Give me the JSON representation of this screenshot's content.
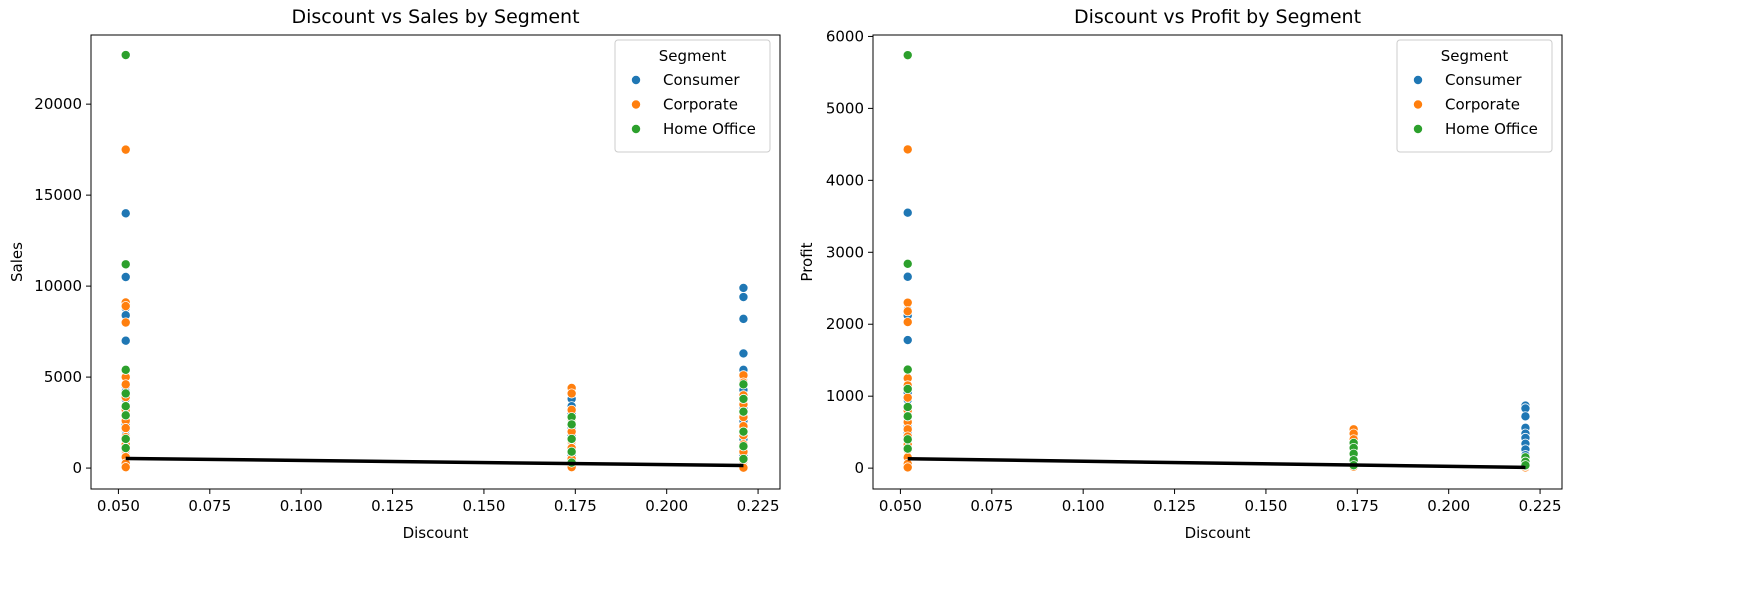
{
  "chart_data": [
    {
      "type": "scatter",
      "title": "Discount vs Sales by Segment",
      "xlabel": "Discount",
      "ylabel": "Sales",
      "xlim": [
        0.0425,
        0.231
      ],
      "ylim": [
        -1150,
        23800
      ],
      "xticks": [
        0.05,
        0.075,
        0.1,
        0.125,
        0.15,
        0.175,
        0.2,
        0.225
      ],
      "yticks": [
        0,
        5000,
        10000,
        15000,
        20000
      ],
      "grid": false,
      "legend": {
        "title": "Segment",
        "placement": "top-right"
      },
      "series": [
        {
          "name": "Consumer",
          "color": "#1f77b4",
          "points": [
            [
              0.052,
              14000
            ],
            [
              0.052,
              10500
            ],
            [
              0.052,
              8800
            ],
            [
              0.052,
              8400
            ],
            [
              0.052,
              7000
            ],
            [
              0.052,
              4500
            ],
            [
              0.052,
              4200
            ],
            [
              0.052,
              3800
            ],
            [
              0.052,
              3400
            ],
            [
              0.052,
              3000
            ],
            [
              0.052,
              2700
            ],
            [
              0.052,
              2400
            ],
            [
              0.052,
              2100
            ],
            [
              0.052,
              1800
            ],
            [
              0.052,
              1500
            ],
            [
              0.052,
              1200
            ],
            [
              0.052,
              900
            ],
            [
              0.052,
              600
            ],
            [
              0.052,
              300
            ],
            [
              0.052,
              100
            ],
            [
              0.174,
              3800
            ],
            [
              0.174,
              3400
            ],
            [
              0.174,
              3000
            ],
            [
              0.174,
              2600
            ],
            [
              0.174,
              2200
            ],
            [
              0.174,
              1800
            ],
            [
              0.174,
              1400
            ],
            [
              0.174,
              1000
            ],
            [
              0.174,
              700
            ],
            [
              0.174,
              400
            ],
            [
              0.174,
              150
            ],
            [
              0.221,
              9900
            ],
            [
              0.221,
              9400
            ],
            [
              0.221,
              8200
            ],
            [
              0.221,
              6300
            ],
            [
              0.221,
              5400
            ],
            [
              0.221,
              4800
            ],
            [
              0.221,
              4300
            ],
            [
              0.221,
              3300
            ],
            [
              0.221,
              2900
            ],
            [
              0.221,
              2600
            ],
            [
              0.221,
              2100
            ],
            [
              0.221,
              1600
            ],
            [
              0.221,
              1100
            ],
            [
              0.221,
              700
            ],
            [
              0.221,
              300
            ],
            [
              0.221,
              50
            ]
          ]
        },
        {
          "name": "Corporate",
          "color": "#ff7f0e",
          "points": [
            [
              0.052,
              17500
            ],
            [
              0.052,
              9100
            ],
            [
              0.052,
              8900
            ],
            [
              0.052,
              8000
            ],
            [
              0.052,
              5000
            ],
            [
              0.052,
              4600
            ],
            [
              0.052,
              3900
            ],
            [
              0.052,
              3200
            ],
            [
              0.052,
              2600
            ],
            [
              0.052,
              2200
            ],
            [
              0.052,
              1700
            ],
            [
              0.052,
              1300
            ],
            [
              0.052,
              1000
            ],
            [
              0.052,
              600
            ],
            [
              0.052,
              250
            ],
            [
              0.052,
              50
            ],
            [
              0.174,
              4400
            ],
            [
              0.174,
              4100
            ],
            [
              0.174,
              3200
            ],
            [
              0.174,
              2700
            ],
            [
              0.174,
              2000
            ],
            [
              0.174,
              1500
            ],
            [
              0.174,
              1100
            ],
            [
              0.174,
              500
            ],
            [
              0.174,
              200
            ],
            [
              0.174,
              50
            ],
            [
              0.221,
              5100
            ],
            [
              0.221,
              4700
            ],
            [
              0.221,
              4000
            ],
            [
              0.221,
              3500
            ],
            [
              0.221,
              2800
            ],
            [
              0.221,
              2300
            ],
            [
              0.221,
              1800
            ],
            [
              0.221,
              1300
            ],
            [
              0.221,
              900
            ],
            [
              0.221,
              400
            ],
            [
              0.221,
              100
            ],
            [
              0.221,
              20
            ]
          ]
        },
        {
          "name": "Home Office",
          "color": "#2ca02c",
          "points": [
            [
              0.052,
              22700
            ],
            [
              0.052,
              11200
            ],
            [
              0.052,
              5400
            ],
            [
              0.052,
              4100
            ],
            [
              0.052,
              3400
            ],
            [
              0.052,
              2900
            ],
            [
              0.052,
              1600
            ],
            [
              0.052,
              1100
            ],
            [
              0.174,
              2800
            ],
            [
              0.174,
              2400
            ],
            [
              0.174,
              1600
            ],
            [
              0.174,
              900
            ],
            [
              0.174,
              300
            ],
            [
              0.221,
              4600
            ],
            [
              0.221,
              3800
            ],
            [
              0.221,
              3100
            ],
            [
              0.221,
              2000
            ],
            [
              0.221,
              1200
            ],
            [
              0.221,
              500
            ]
          ]
        }
      ],
      "trendline": {
        "color": "#000000",
        "points": [
          [
            0.052,
            530
          ],
          [
            0.221,
            140
          ]
        ]
      }
    },
    {
      "type": "scatter",
      "title": "Discount vs Profit by Segment",
      "xlabel": "Discount",
      "ylabel": "Profit",
      "xlim": [
        0.0425,
        0.231
      ],
      "ylim": [
        -290,
        6020
      ],
      "xticks": [
        0.05,
        0.075,
        0.1,
        0.125,
        0.15,
        0.175,
        0.2,
        0.225
      ],
      "yticks": [
        0,
        1000,
        2000,
        3000,
        4000,
        5000,
        6000
      ],
      "grid": false,
      "legend": {
        "title": "Segment",
        "placement": "top-right"
      },
      "series": [
        {
          "name": "Consumer",
          "color": "#1f77b4",
          "points": [
            [
              0.052,
              3550
            ],
            [
              0.052,
              2660
            ],
            [
              0.052,
              2200
            ],
            [
              0.052,
              2120
            ],
            [
              0.052,
              1780
            ],
            [
              0.052,
              1140
            ],
            [
              0.052,
              1050
            ],
            [
              0.052,
              950
            ],
            [
              0.052,
              850
            ],
            [
              0.052,
              750
            ],
            [
              0.052,
              660
            ],
            [
              0.052,
              580
            ],
            [
              0.052,
              500
            ],
            [
              0.052,
              420
            ],
            [
              0.052,
              340
            ],
            [
              0.052,
              250
            ],
            [
              0.052,
              150
            ],
            [
              0.052,
              60
            ],
            [
              0.174,
              430
            ],
            [
              0.174,
              380
            ],
            [
              0.174,
              320
            ],
            [
              0.174,
              260
            ],
            [
              0.174,
              200
            ],
            [
              0.174,
              150
            ],
            [
              0.174,
              100
            ],
            [
              0.174,
              50
            ],
            [
              0.174,
              20
            ],
            [
              0.221,
              870
            ],
            [
              0.221,
              830
            ],
            [
              0.221,
              720
            ],
            [
              0.221,
              560
            ],
            [
              0.221,
              480
            ],
            [
              0.221,
              420
            ],
            [
              0.221,
              340
            ],
            [
              0.221,
              260
            ],
            [
              0.221,
              180
            ],
            [
              0.221,
              100
            ],
            [
              0.221,
              30
            ]
          ]
        },
        {
          "name": "Corporate",
          "color": "#ff7f0e",
          "points": [
            [
              0.052,
              4430
            ],
            [
              0.052,
              2300
            ],
            [
              0.052,
              2180
            ],
            [
              0.052,
              2030
            ],
            [
              0.052,
              1250
            ],
            [
              0.052,
              1150
            ],
            [
              0.052,
              980
            ],
            [
              0.052,
              800
            ],
            [
              0.052,
              640
            ],
            [
              0.052,
              540
            ],
            [
              0.052,
              440
            ],
            [
              0.052,
              330
            ],
            [
              0.052,
              250
            ],
            [
              0.052,
              150
            ],
            [
              0.052,
              60
            ],
            [
              0.052,
              10
            ],
            [
              0.174,
              540
            ],
            [
              0.174,
              480
            ],
            [
              0.174,
              400
            ],
            [
              0.174,
              330
            ],
            [
              0.174,
              250
            ],
            [
              0.174,
              180
            ],
            [
              0.174,
              120
            ],
            [
              0.174,
              60
            ],
            [
              0.174,
              20
            ],
            [
              0.221,
              10
            ],
            [
              0.221,
              30
            ],
            [
              0.221,
              60
            ]
          ]
        },
        {
          "name": "Home Office",
          "color": "#2ca02c",
          "points": [
            [
              0.052,
              5740
            ],
            [
              0.052,
              2840
            ],
            [
              0.052,
              1370
            ],
            [
              0.052,
              1100
            ],
            [
              0.052,
              850
            ],
            [
              0.052,
              720
            ],
            [
              0.052,
              400
            ],
            [
              0.052,
              270
            ],
            [
              0.174,
              350
            ],
            [
              0.174,
              280
            ],
            [
              0.174,
              200
            ],
            [
              0.174,
              110
            ],
            [
              0.174,
              40
            ],
            [
              0.221,
              150
            ],
            [
              0.221,
              90
            ],
            [
              0.221,
              40
            ]
          ]
        }
      ],
      "trendline": {
        "color": "#000000",
        "points": [
          [
            0.052,
            130
          ],
          [
            0.221,
            10
          ]
        ]
      }
    }
  ]
}
